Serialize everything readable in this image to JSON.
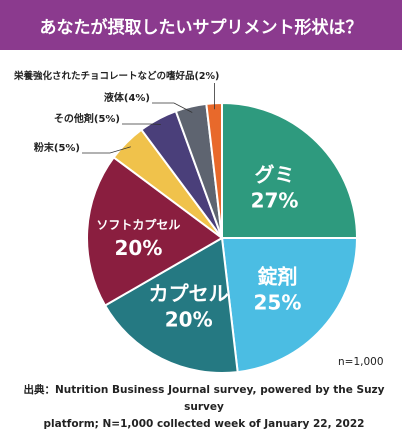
{
  "header": {
    "title": "あなたが摂取したいサプリメント形状は？"
  },
  "colors": {
    "header_bg": "#8b3a8e",
    "gummy": "#2e9a7e",
    "tablet": "#4bbde3",
    "capsule": "#257982",
    "soft_capsule": "#8a1e3f",
    "powder": "#f0c24b",
    "other_agent": "#4a3f7a",
    "liquid": "#5e6470",
    "food": "#e8692b"
  },
  "chart_data": {
    "type": "pie",
    "title": "あなたが摂取したいサプリメント形状は？",
    "slices": [
      {
        "label": "グミ",
        "pct": "27%",
        "value": 27,
        "color_key": "gummy"
      },
      {
        "label": "錠剤",
        "pct": "25%",
        "value": 25,
        "color_key": "tablet"
      },
      {
        "label": "カプセル",
        "pct": "20%",
        "value": 20,
        "color_key": "capsule"
      },
      {
        "label": "ソフトカプセル",
        "pct": "20%",
        "value": 20,
        "color_key": "soft_capsule"
      },
      {
        "label": "粉末(5%)",
        "value": 5,
        "color_key": "powder"
      },
      {
        "label": "その他剤(5%)",
        "value": 5,
        "color_key": "other_agent"
      },
      {
        "label": "液体(4%)",
        "value": 4,
        "color_key": "liquid"
      },
      {
        "label": "栄養強化されたチョコレートなどの嗜好品(2%)",
        "value": 2,
        "color_key": "food"
      }
    ],
    "sample_note": "n=1,000"
  },
  "footer": {
    "source_line1": "出典：Nutrition Business Journal survey, powered by the Suzy survey",
    "source_line2": "platform; N=1,000 collected week of January 22, 2022"
  }
}
